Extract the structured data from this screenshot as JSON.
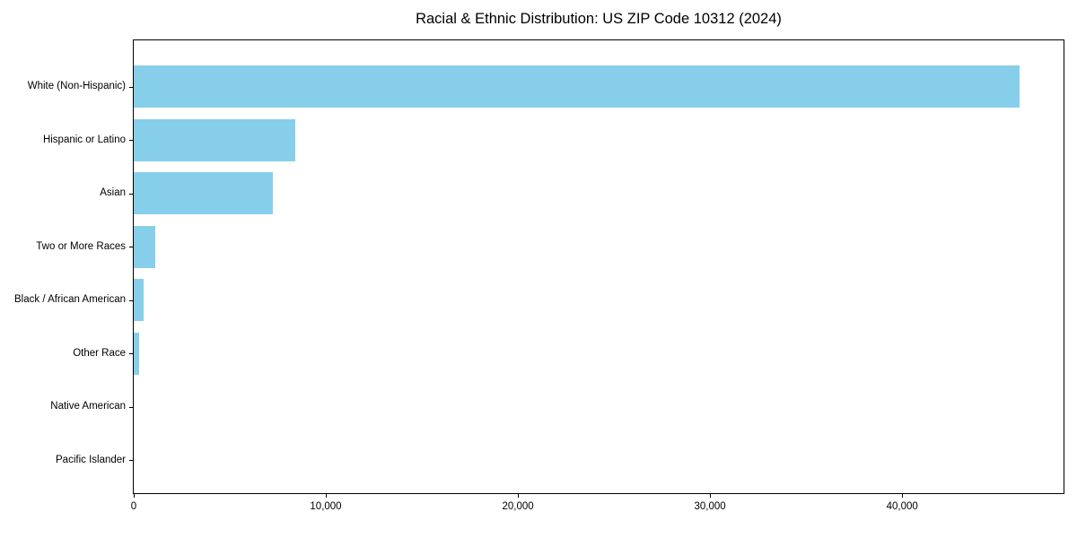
{
  "figure": {
    "background_color": "#ffffff",
    "spine_color": "#000000",
    "text_color": "#000000"
  },
  "chart_data": {
    "type": "bar",
    "orientation": "horizontal",
    "title": "Racial & Ethnic Distribution: US ZIP Code 10312 (2024)",
    "categories": [
      "White (Non-Hispanic)",
      "Hispanic or Latino",
      "Asian",
      "Two or More Races",
      "Black / African American",
      "Other Race",
      "Native American",
      "Pacific Islander"
    ],
    "values": [
      46100,
      8400,
      7250,
      1100,
      500,
      290,
      0,
      0
    ],
    "xlabel": "",
    "ylabel": "",
    "xlim": [
      0,
      48400
    ],
    "x_ticks": [
      0,
      10000,
      20000,
      30000,
      40000
    ],
    "x_tick_labels": [
      "0",
      "10,000",
      "20,000",
      "30,000",
      "40,000"
    ],
    "bar_color": "#87CEEB",
    "grid": false,
    "legend": null
  }
}
